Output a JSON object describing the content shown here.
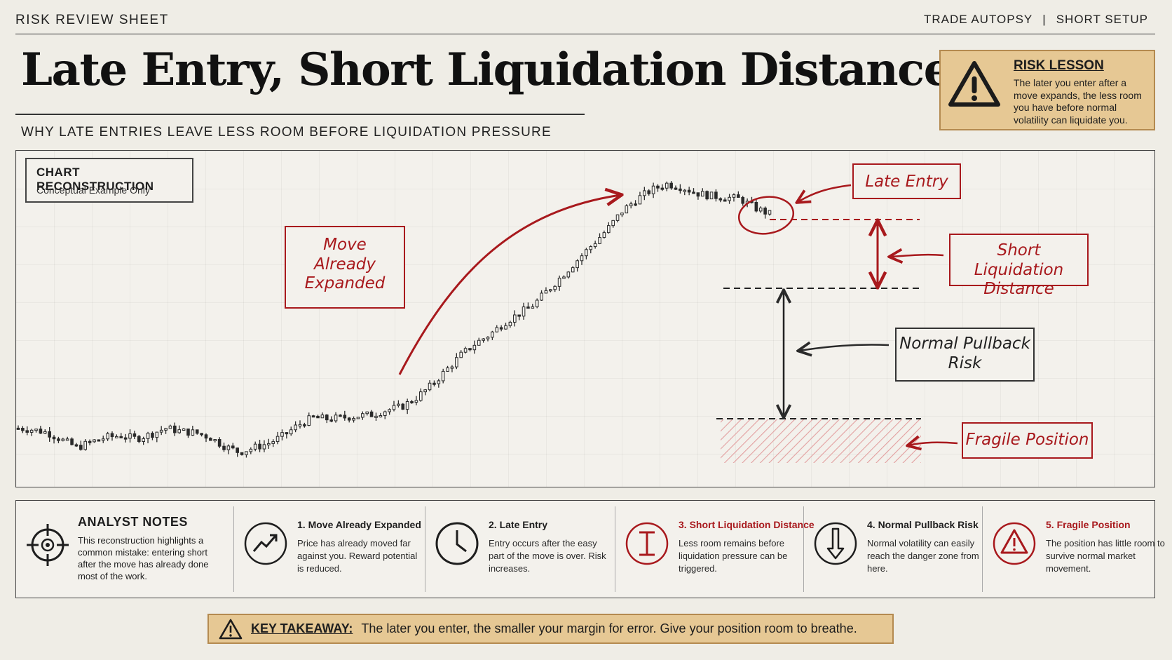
{
  "header": {
    "sheet_label": "RISK REVIEW SHEET",
    "tag_left": "TRADE AUTOPSY",
    "tag_sep": "|",
    "tag_right": "SHORT SETUP",
    "title": "Late Entry, Short Liquidation Distance",
    "subtitle": "WHY LATE ENTRIES LEAVE LESS ROOM BEFORE LIQUIDATION PRESSURE"
  },
  "risk_lesson": {
    "title": "RISK LESSON",
    "text": "The later you enter after a move expands, the less room you have before normal volatility can liquidate you.",
    "icon": "warning-triangle-icon"
  },
  "chart_panel": {
    "title": "CHART RECONSTRUCTION",
    "subtitle": "Conceptual Example Only"
  },
  "annotations": {
    "move_expanded_lines": [
      "Move",
      "Already",
      "Expanded"
    ],
    "late_entry": "Late Entry",
    "short_liq_lines": [
      "Short Liquidation",
      "Distance"
    ],
    "normal_pullback_lines": [
      "Normal Pullback",
      "Risk"
    ],
    "fragile_position": "Fragile Position"
  },
  "chart_data": {
    "type": "candlestick",
    "title": "",
    "xlabel": "",
    "ylabel": "",
    "ylim": [
      0,
      100
    ],
    "grid": true,
    "legend": "none",
    "description_points": "price path: ranging, small dip, steady climb, sharp expansion, top and late consolidation",
    "path": [
      [
        0,
        12
      ],
      [
        10,
        11.5
      ],
      [
        20,
        10.5
      ],
      [
        30,
        8
      ],
      [
        40,
        5.5
      ],
      [
        50,
        7.5
      ],
      [
        60,
        9
      ],
      [
        70,
        9.5
      ],
      [
        80,
        8.5
      ],
      [
        90,
        10
      ],
      [
        100,
        12
      ],
      [
        110,
        11
      ],
      [
        120,
        10.5
      ],
      [
        130,
        9
      ],
      [
        140,
        6
      ],
      [
        150,
        4
      ],
      [
        160,
        5.5
      ],
      [
        170,
        7
      ],
      [
        180,
        9.5
      ],
      [
        190,
        13
      ],
      [
        200,
        15.5
      ],
      [
        210,
        15
      ],
      [
        220,
        15.5
      ],
      [
        230,
        16
      ],
      [
        240,
        16.5
      ],
      [
        250,
        18
      ],
      [
        260,
        19
      ],
      [
        270,
        22
      ],
      [
        280,
        26
      ],
      [
        290,
        31
      ],
      [
        300,
        36
      ],
      [
        310,
        40
      ],
      [
        320,
        43
      ],
      [
        330,
        47
      ],
      [
        340,
        50
      ],
      [
        350,
        53
      ],
      [
        360,
        58
      ],
      [
        370,
        63
      ],
      [
        380,
        68
      ],
      [
        390,
        73
      ],
      [
        400,
        78
      ],
      [
        410,
        84
      ],
      [
        420,
        88
      ],
      [
        430,
        91
      ],
      [
        440,
        93
      ],
      [
        450,
        92
      ],
      [
        460,
        90
      ],
      [
        470,
        89
      ],
      [
        480,
        88.5
      ],
      [
        490,
        88
      ],
      [
        500,
        85
      ],
      [
        510,
        83
      ]
    ],
    "levels": {
      "entry": 83,
      "liquidation_pressure": 63,
      "danger_zone_top": 25
    },
    "colors": {
      "candle": "#2a2a2a",
      "annotation_red": "#a8191d",
      "annotation_dark": "#2a2a2a",
      "hatch": "#e7a8a8"
    }
  },
  "notes": {
    "analyst_icon": "crosshair-target-icon",
    "analyst_title": "ANALYST NOTES",
    "analyst_text": "This reconstruction highlights a common mistake: entering short after the move has already done most of the work.",
    "items": [
      {
        "icon": "trend-up-arrow-icon",
        "title": "1. Move Already Expanded",
        "text": "Price has already moved far against you. Reward potential is reduced.",
        "color": "#1e1e1e"
      },
      {
        "icon": "clock-icon",
        "title": "2. Late Entry",
        "text": "Entry occurs after the easy part of the move is over. Risk increases.",
        "color": "#1e1e1e"
      },
      {
        "icon": "i-beam-gap-icon",
        "title": "3. Short Liquidation Distance",
        "text": "Less room remains before liquidation pressure can be triggered.",
        "color": "#a8191d"
      },
      {
        "icon": "down-arrow-icon",
        "title": "4. Normal Pullback Risk",
        "text": "Normal volatility can easily reach the danger zone from here.",
        "color": "#1e1e1e"
      },
      {
        "icon": "warning-triangle-icon",
        "title": "5. Fragile Position",
        "text": "The position has little room to survive normal market movement.",
        "color": "#a8191d"
      }
    ]
  },
  "takeaway": {
    "icon": "warning-triangle-icon",
    "label": "KEY TAKEAWAY:",
    "text": "The later you enter, the smaller your margin for error. Give your position room to breathe."
  }
}
